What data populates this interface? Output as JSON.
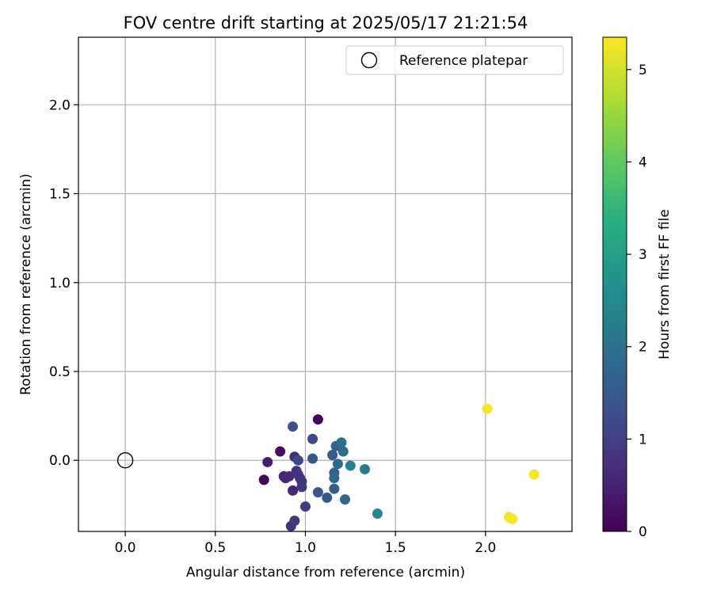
{
  "chart_data": {
    "type": "scatter",
    "title": "FOV centre drift starting at 2025/05/17 21:21:54",
    "xlabel": "Angular distance from reference (arcmin)",
    "ylabel": "Rotation from reference (arcmin)",
    "xlim": [
      -0.26,
      2.48
    ],
    "ylim": [
      -0.4,
      2.38
    ],
    "xticks": [
      0.0,
      0.5,
      1.0,
      1.5,
      2.0
    ],
    "yticks": [
      0.0,
      0.5,
      1.0,
      1.5,
      2.0
    ],
    "xtick_labels": [
      "0.0",
      "0.5",
      "1.0",
      "1.5",
      "2.0"
    ],
    "ytick_labels": [
      "0.0",
      "0.5",
      "1.0",
      "1.5",
      "2.0"
    ],
    "grid": true,
    "legend": {
      "placement": "top-right",
      "entries": [
        "Reference platepar"
      ]
    },
    "reference_point": {
      "x": 0.0,
      "y": 0.0
    },
    "colorbar": {
      "label": "Hours from first FF file",
      "colormap": "viridis",
      "range": [
        0,
        5.35
      ],
      "ticks": [
        0,
        1,
        2,
        3,
        4,
        5
      ],
      "tick_labels": [
        "0",
        "1",
        "2",
        "3",
        "4",
        "5"
      ]
    },
    "points": [
      {
        "x": 1.07,
        "y": 0.23,
        "hours": 0.05
      },
      {
        "x": 0.86,
        "y": 0.05,
        "hours": 0.2
      },
      {
        "x": 0.77,
        "y": -0.11,
        "hours": 0.1
      },
      {
        "x": 0.79,
        "y": -0.01,
        "hours": 0.45
      },
      {
        "x": 0.88,
        "y": -0.09,
        "hours": 0.55
      },
      {
        "x": 0.89,
        "y": -0.1,
        "hours": 0.6
      },
      {
        "x": 0.91,
        "y": -0.09,
        "hours": 0.65
      },
      {
        "x": 0.93,
        "y": -0.17,
        "hours": 0.6
      },
      {
        "x": 0.94,
        "y": 0.02,
        "hours": 0.7
      },
      {
        "x": 0.95,
        "y": -0.06,
        "hours": 0.7
      },
      {
        "x": 0.96,
        "y": -0.08,
        "hours": 0.8
      },
      {
        "x": 0.97,
        "y": -0.1,
        "hours": 0.75
      },
      {
        "x": 0.98,
        "y": -0.12,
        "hours": 0.8
      },
      {
        "x": 0.98,
        "y": -0.15,
        "hours": 0.85
      },
      {
        "x": 0.92,
        "y": -0.37,
        "hours": 0.8
      },
      {
        "x": 0.94,
        "y": -0.34,
        "hours": 0.85
      },
      {
        "x": 1.0,
        "y": -0.26,
        "hours": 0.95
      },
      {
        "x": 0.96,
        "y": 0.0,
        "hours": 1.15
      },
      {
        "x": 0.93,
        "y": 0.19,
        "hours": 1.35
      },
      {
        "x": 1.04,
        "y": 0.12,
        "hours": 1.2
      },
      {
        "x": 1.04,
        "y": 0.01,
        "hours": 1.45
      },
      {
        "x": 1.07,
        "y": -0.18,
        "hours": 1.4
      },
      {
        "x": 1.12,
        "y": -0.21,
        "hours": 1.45
      },
      {
        "x": 1.15,
        "y": 0.03,
        "hours": 1.55
      },
      {
        "x": 1.16,
        "y": -0.16,
        "hours": 1.55
      },
      {
        "x": 1.16,
        "y": -0.07,
        "hours": 1.7
      },
      {
        "x": 1.16,
        "y": -0.1,
        "hours": 1.8
      },
      {
        "x": 1.17,
        "y": 0.08,
        "hours": 1.65
      },
      {
        "x": 1.18,
        "y": -0.02,
        "hours": 1.85
      },
      {
        "x": 1.2,
        "y": 0.1,
        "hours": 1.95
      },
      {
        "x": 1.21,
        "y": 0.05,
        "hours": 1.9
      },
      {
        "x": 1.22,
        "y": -0.22,
        "hours": 1.75
      },
      {
        "x": 1.25,
        "y": -0.03,
        "hours": 2.35
      },
      {
        "x": 1.33,
        "y": -0.05,
        "hours": 2.25
      },
      {
        "x": 1.4,
        "y": -0.3,
        "hours": 2.45
      },
      {
        "x": 2.01,
        "y": 0.29,
        "hours": 5.3
      },
      {
        "x": 2.27,
        "y": -0.08,
        "hours": 5.3
      },
      {
        "x": 2.13,
        "y": -0.32,
        "hours": 5.3
      },
      {
        "x": 2.15,
        "y": -0.33,
        "hours": 5.3
      }
    ]
  }
}
